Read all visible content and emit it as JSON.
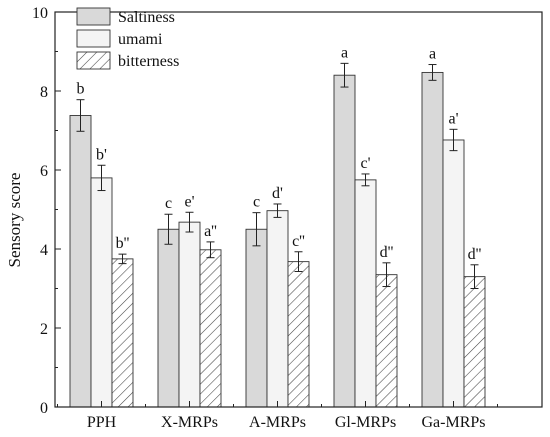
{
  "chart_data": {
    "type": "bar",
    "ylabel": "Sensory score",
    "ylim": [
      0,
      10
    ],
    "yticks": [
      0,
      2,
      4,
      6,
      8,
      10
    ],
    "categories": [
      "PPH",
      "X-MRPs",
      "A-MRPs",
      "Gl-MRPs",
      "Ga-MRPs"
    ],
    "legend_position": "top-left",
    "grid": false,
    "series": [
      {
        "name": "Saltiness",
        "fill": "#d9d9d9",
        "pattern": "solid",
        "values": [
          7.38,
          4.5,
          4.5,
          8.4,
          8.47
        ],
        "errors": [
          0.4,
          0.38,
          0.42,
          0.3,
          0.2
        ],
        "labels": [
          "b",
          "c",
          "c",
          "a",
          "a"
        ]
      },
      {
        "name": "umami",
        "fill": "#f4f4f4",
        "pattern": "solid",
        "values": [
          5.8,
          4.68,
          4.97,
          5.75,
          6.76
        ],
        "errors": [
          0.32,
          0.25,
          0.17,
          0.15,
          0.27
        ],
        "labels": [
          "b'",
          "e'",
          "d'",
          "c'",
          "a'"
        ]
      },
      {
        "name": "bitterness",
        "fill": "#ffffff",
        "pattern": "hatch",
        "values": [
          3.75,
          3.98,
          3.68,
          3.35,
          3.3
        ],
        "errors": [
          0.12,
          0.2,
          0.25,
          0.3,
          0.3
        ],
        "labels": [
          "b''",
          "a''",
          "c''",
          "d''",
          "d''"
        ]
      }
    ]
  }
}
